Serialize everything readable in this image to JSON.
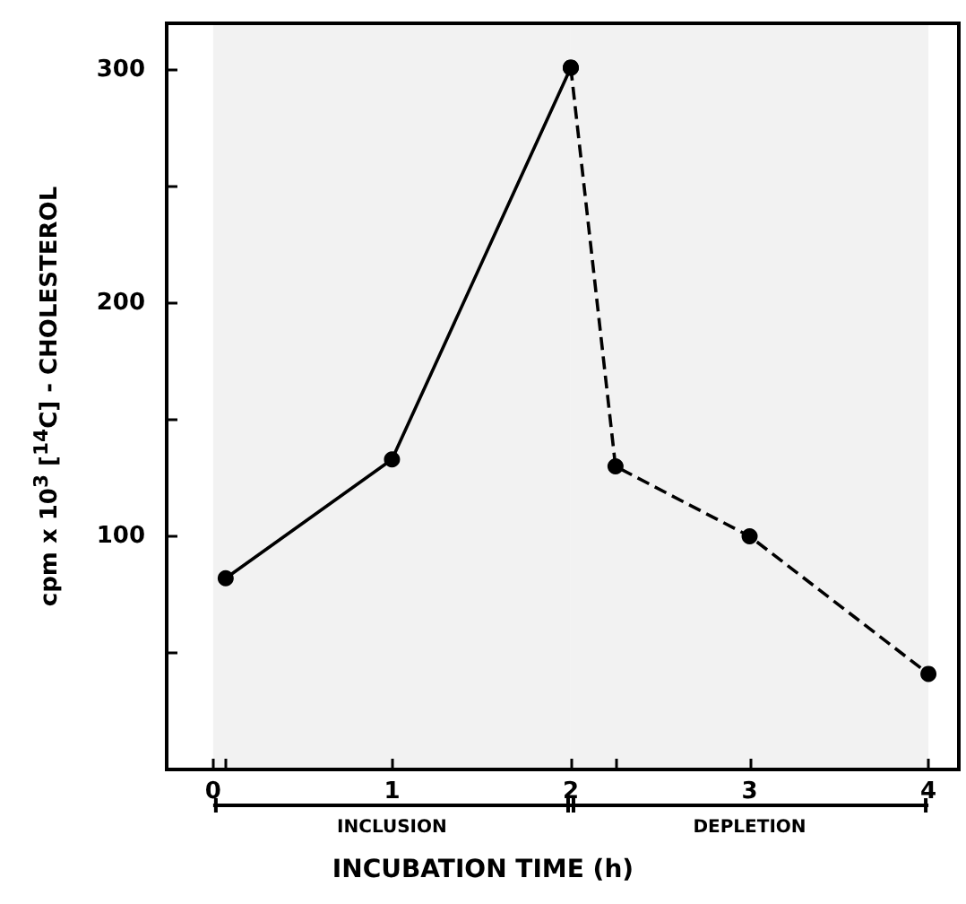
{
  "chart_data": {
    "type": "line",
    "xlabel": "INCUBATION TIME (h)",
    "ylabel": "cpm x 10$^{3}$ [$^{14}$C] - CHOLESTEROL",
    "series": [
      {
        "color": "#000000",
        "line_style": "solid",
        "x": [
          0.07,
          1,
          2
        ],
        "values": [
          82,
          133,
          301
        ]
      },
      {
        "color": "#000000",
        "line_style": "dashed",
        "x": [
          2,
          2.25,
          3,
          4
        ],
        "values": [
          301,
          130,
          100,
          41
        ]
      }
    ],
    "xlim": [
      -0.26,
      4.17
    ],
    "ylim": [
      0,
      320
    ],
    "xticks": [
      0,
      {
        "value": 0.07,
        "label": null
      },
      1,
      2,
      {
        "value": 2.25,
        "label": null
      },
      3,
      4
    ],
    "yticks": [
      {
        "value": 50,
        "label": null
      },
      100,
      {
        "value": 150,
        "label": null
      },
      200,
      {
        "value": 250,
        "label": null
      },
      300
    ],
    "bands": [
      {
        "axis": "x",
        "from": 0,
        "to": 2,
        "label": "INCLUSION"
      },
      {
        "axis": "x",
        "from": 2,
        "to": 4,
        "label": "DEPLETION"
      }
    ],
    "grid": false,
    "marker": "circle"
  }
}
